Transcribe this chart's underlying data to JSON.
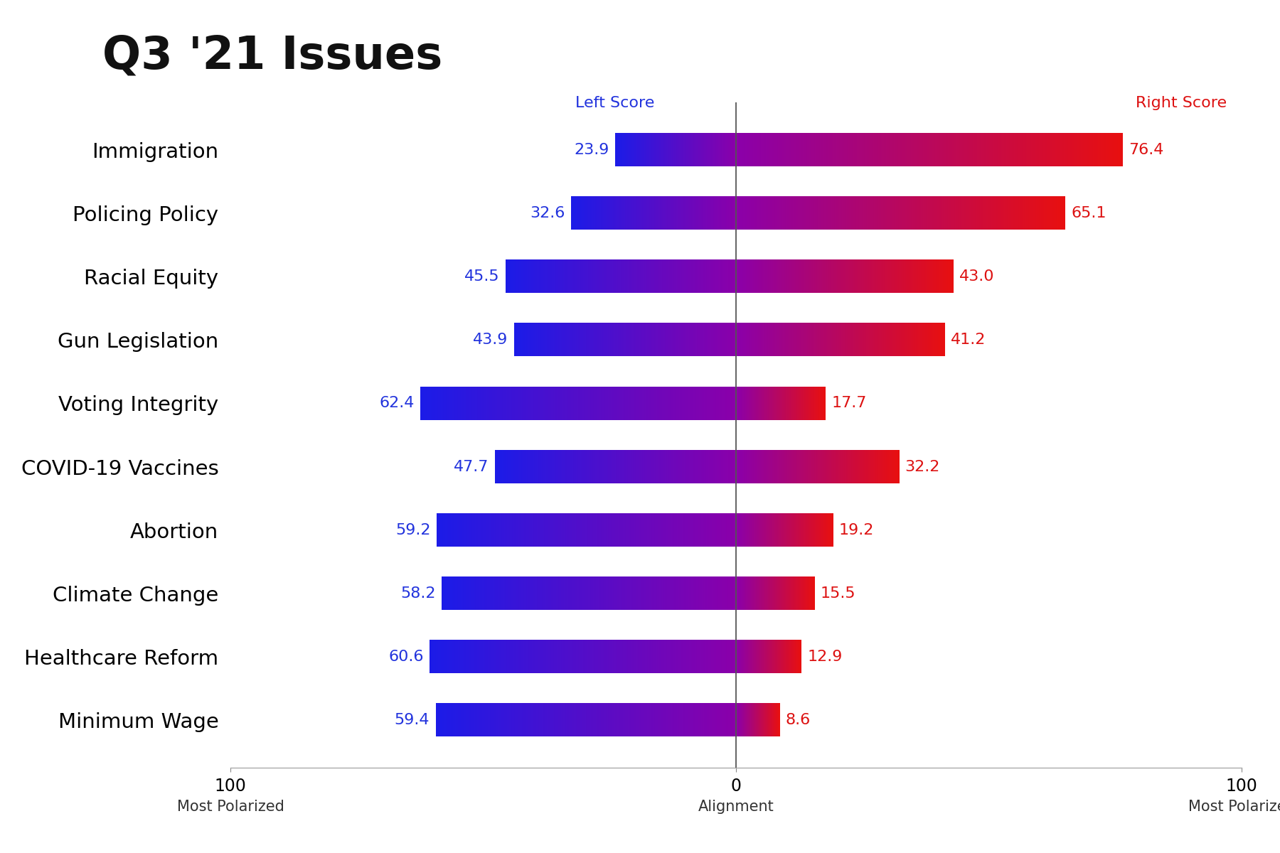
{
  "title": "Q3 '21 Issues",
  "issues": [
    "Immigration",
    "Policing Policy",
    "Racial Equity",
    "Gun Legislation",
    "Voting Integrity",
    "COVID-19 Vaccines",
    "Abortion",
    "Climate Change",
    "Healthcare Reform",
    "Minimum Wage"
  ],
  "left_scores": [
    23.9,
    32.6,
    45.5,
    43.9,
    62.4,
    47.7,
    59.2,
    58.2,
    60.6,
    59.4
  ],
  "right_scores": [
    76.4,
    65.1,
    43.0,
    41.2,
    17.7,
    32.2,
    19.2,
    15.5,
    12.9,
    8.6
  ],
  "bar_height": 0.52,
  "xlim": [
    -100,
    100
  ],
  "xticks": [
    -100,
    0,
    100
  ],
  "xlabel_left": "Most Polarized",
  "xlabel_center": "Alignment",
  "xlabel_right": "Most Polarized",
  "left_label": "Left Score",
  "right_label": "Right Score",
  "blue_color": "#1C1CE8",
  "red_color": "#E81010",
  "purple_color": "#8B00AA",
  "background_color": "#FFFFFF",
  "title_fontsize": 46,
  "label_fontsize": 16,
  "tick_fontsize": 17,
  "issue_fontsize": 21,
  "score_fontsize": 16,
  "left_score_color": "#2233DD",
  "right_score_color": "#DD1111"
}
